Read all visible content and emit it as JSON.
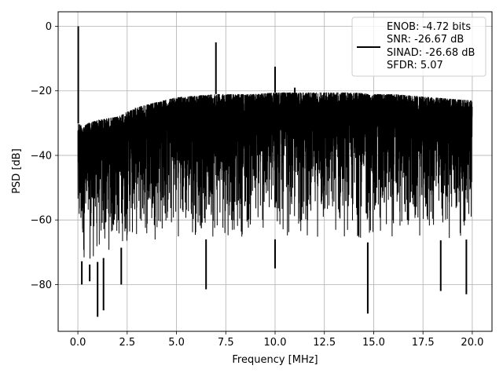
{
  "chart_data": {
    "type": "line",
    "title": "",
    "xlabel": "Frequency [MHz]",
    "ylabel": "PSD [dB]",
    "xlim": [
      -1.0,
      21.0
    ],
    "ylim": [
      -94.5,
      4.5
    ],
    "xticks": [
      0.0,
      2.5,
      5.0,
      7.5,
      10.0,
      12.5,
      15.0,
      17.5,
      20.0
    ],
    "xtick_labels": [
      "0.0",
      "2.5",
      "5.0",
      "7.5",
      "10.0",
      "12.5",
      "15.0",
      "17.5",
      "20.0"
    ],
    "yticks": [
      0,
      -20,
      -40,
      -60,
      -80
    ],
    "ytick_labels": [
      "0",
      "−20",
      "−40",
      "−60",
      "−80"
    ],
    "grid": true,
    "legend_position": "top-right",
    "legend": [
      "ENOB: -4.72 bits",
      "SNR: -26.67 dB",
      "SINAD: -26.68 dB",
      "SFDR: 5.07"
    ],
    "line_color": "#000000",
    "series": [
      {
        "envelope_upper": {
          "x": [
            0.0,
            0.3,
            0.5,
            1.0,
            1.5,
            2.0,
            2.5,
            3.0,
            4.0,
            5.0,
            6.0,
            7.0,
            8.0,
            9.0,
            10.0,
            11.0,
            12.0,
            13.0,
            14.0,
            15.0,
            16.0,
            17.0,
            18.0,
            19.0,
            20.0
          ],
          "y": [
            -30,
            -31,
            -30,
            -29,
            -28.5,
            -28,
            -26.5,
            -25,
            -23.5,
            -22,
            -21.5,
            -21,
            -21,
            -21,
            -20.5,
            -20.5,
            -20.5,
            -20.5,
            -20.5,
            -21,
            -21,
            -21.5,
            -22,
            -22.5,
            -23
          ]
        },
        "envelope_lower": {
          "x": [
            0.0,
            0.5,
            1.0,
            2.0,
            3.0,
            5.0,
            10.0,
            15.0,
            20.0
          ],
          "y": [
            -72,
            -74,
            -73,
            -69,
            -67,
            -66,
            -66,
            -67,
            -66
          ]
        },
        "peaks": [
          {
            "x": 0.02,
            "y": 0.0
          },
          {
            "x": 7.0,
            "y": -5.0
          },
          {
            "x": 10.0,
            "y": -12.5
          },
          {
            "x": 11.0,
            "y": -19.0
          }
        ],
        "dips": [
          {
            "x": 0.2,
            "y": -80.0
          },
          {
            "x": 0.6,
            "y": -79.0
          },
          {
            "x": 1.0,
            "y": -90.0
          },
          {
            "x": 1.3,
            "y": -88.0
          },
          {
            "x": 2.2,
            "y": -80.0
          },
          {
            "x": 6.5,
            "y": -81.5
          },
          {
            "x": 10.0,
            "y": -75.0
          },
          {
            "x": 14.7,
            "y": -89.0
          },
          {
            "x": 18.4,
            "y": -82.0
          },
          {
            "x": 19.7,
            "y": -83.0
          }
        ]
      }
    ]
  }
}
